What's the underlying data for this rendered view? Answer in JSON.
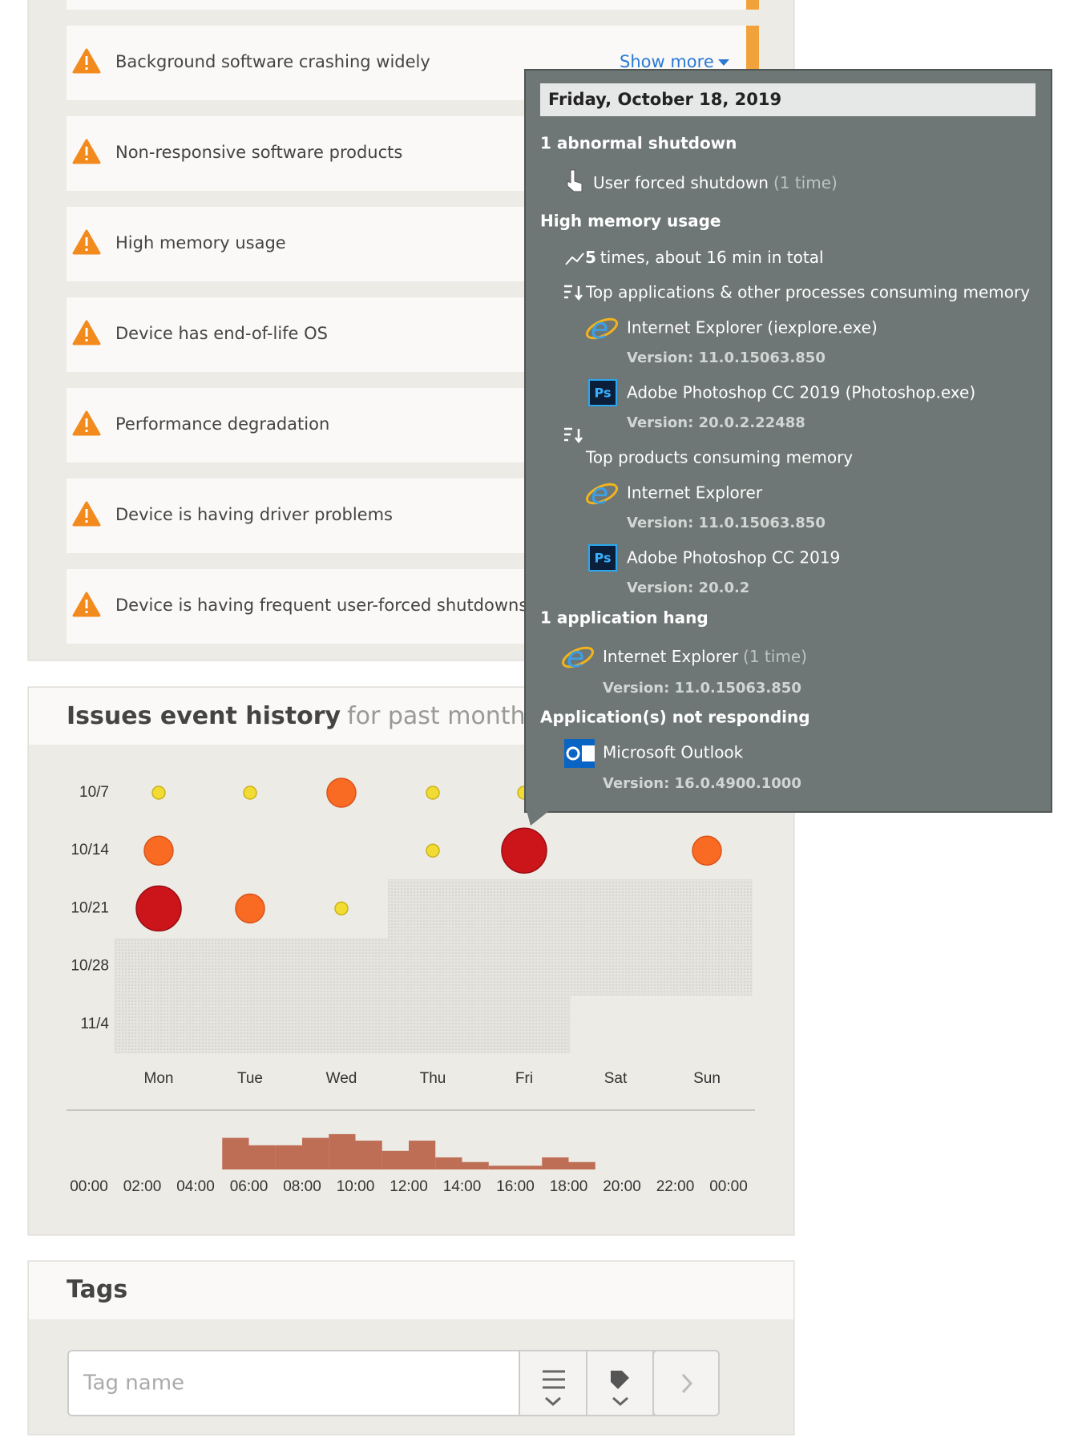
{
  "issues": {
    "items": [
      "Background software crashing widely",
      "Non-responsive software products",
      "High memory usage",
      "Device has end-of-life OS",
      "Performance degradation",
      "Device is having driver problems",
      "Device is having frequent user-forced shutdowns"
    ],
    "show_more": "Show more"
  },
  "tooltip": {
    "date": "Friday, October 18, 2019",
    "shutdown": {
      "title": "1 abnormal shutdown",
      "cause": "User forced shutdown",
      "count": "(1 time)"
    },
    "memory": {
      "title": "High memory usage",
      "count": "5",
      "summary": "times, about 16 min in total",
      "apps_title": "Top applications & other processes consuming memory",
      "apps": [
        {
          "name": "Internet Explorer (iexplore.exe)",
          "version": "Version: 11.0.15063.850"
        },
        {
          "name": "Adobe Photoshop CC 2019 (Photoshop.exe)",
          "version": "Version: 20.0.2.22488"
        }
      ],
      "products_title": "Top products consuming memory",
      "products": [
        {
          "name": "Internet Explorer",
          "version": "Version: 11.0.15063.850"
        },
        {
          "name": "Adobe Photoshop CC 2019",
          "version": "Version: 20.0.2"
        }
      ]
    },
    "hang": {
      "title": "1 application hang",
      "app": "Internet Explorer",
      "count": "(1 time)",
      "version": "Version: 11.0.15063.850"
    },
    "not_responding": {
      "title": "Application(s) not responding",
      "app": "Microsoft Outlook",
      "version": "Version: 16.0.4900.1000"
    }
  },
  "event_history": {
    "title": "Issues event history",
    "subtitle": "for past month",
    "weeks": [
      "10/7",
      "10/14",
      "10/21",
      "10/28",
      "11/4"
    ],
    "days": [
      "Mon",
      "Tue",
      "Wed",
      "Thu",
      "Fri",
      "Sat",
      "Sun"
    ],
    "severity_colors": [
      "#f2dc33",
      "#f96a22",
      "#cc141b"
    ],
    "events": [
      [
        1,
        1,
        2,
        1,
        1,
        null,
        null
      ],
      [
        2,
        null,
        null,
        1,
        3,
        null,
        2
      ],
      [
        3,
        2,
        1,
        null,
        null,
        null,
        null
      ],
      [
        null,
        null,
        null,
        null,
        null,
        null,
        null
      ],
      [
        null,
        null,
        null,
        null,
        null,
        null,
        null
      ]
    ],
    "hour_labels": [
      "00:00",
      "02:00",
      "04:00",
      "06:00",
      "08:00",
      "10:00",
      "12:00",
      "14:00",
      "16:00",
      "18:00",
      "20:00",
      "22:00",
      "00:00"
    ],
    "histogram": {
      "bins": [
        5,
        6,
        7,
        8,
        9,
        10,
        11,
        12,
        13,
        14,
        15,
        16,
        17,
        18,
        19
      ],
      "counts": [
        34,
        26,
        26,
        34,
        38,
        31,
        20,
        31,
        13,
        8,
        4,
        4,
        13,
        8
      ],
      "color": "#b5583a"
    }
  },
  "tags": {
    "title": "Tags",
    "placeholder": "Tag name"
  }
}
